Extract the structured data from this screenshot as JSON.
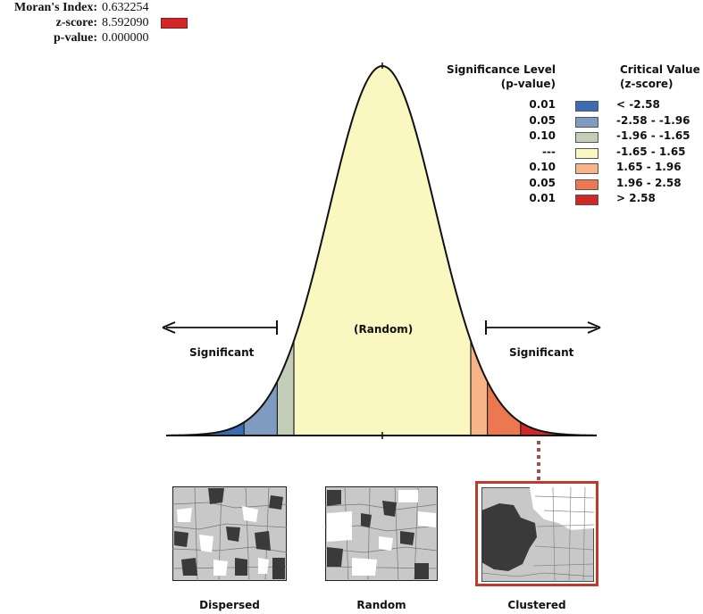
{
  "stats": {
    "morans_label": "Moran's Index:",
    "morans_value": "0.632254",
    "z_label": "z-score:",
    "z_value": "8.592090",
    "p_label": "p-value:",
    "p_value": "0.000000"
  },
  "legend": {
    "sig_header_1": "Significance Level",
    "sig_header_2": "(p-value)",
    "crit_header_1": "Critical Value",
    "crit_header_2": "(z-score)",
    "rows": [
      {
        "p": "0.01",
        "z": "< -2.58",
        "color": "#3b6bb3"
      },
      {
        "p": "0.05",
        "z": "-2.58 - -1.96",
        "color": "#7f9bc0"
      },
      {
        "p": "0.10",
        "z": "-1.96 - -1.65",
        "color": "#c2ceb7"
      },
      {
        "p": "---",
        "z": "-1.65 - 1.65",
        "color": "#fbf7c0"
      },
      {
        "p": "0.10",
        "z": "1.65 - 1.96",
        "color": "#f7b486"
      },
      {
        "p": "0.05",
        "z": "1.96 - 2.58",
        "color": "#ec7852"
      },
      {
        "p": "0.01",
        "z": "> 2.58",
        "color": "#d32626"
      }
    ]
  },
  "curve": {
    "random_label": "(Random)",
    "left_label": "Significant",
    "right_label": "Significant"
  },
  "chart_data": {
    "type": "area",
    "title": "",
    "xlabel": "",
    "ylabel": "",
    "distribution": "standard normal",
    "xlim": [
      -4,
      4
    ],
    "bands": [
      {
        "from": -4.0,
        "to": -2.58,
        "color": "#3b6bb3"
      },
      {
        "from": -2.58,
        "to": -1.96,
        "color": "#7f9bc0"
      },
      {
        "from": -1.96,
        "to": -1.65,
        "color": "#c2ceb7"
      },
      {
        "from": -1.65,
        "to": 1.65,
        "color": "#fbf7c0"
      },
      {
        "from": 1.65,
        "to": 1.96,
        "color": "#f7b486"
      },
      {
        "from": 1.96,
        "to": 2.58,
        "color": "#ec7852"
      },
      {
        "from": 2.58,
        "to": 4.0,
        "color": "#d32626"
      }
    ],
    "observed_z": 8.59209
  },
  "examples": {
    "dispersed_label": "Dispersed",
    "random_label": "Random",
    "clustered_label": "Clustered",
    "highlight_color": "#c0392b"
  }
}
